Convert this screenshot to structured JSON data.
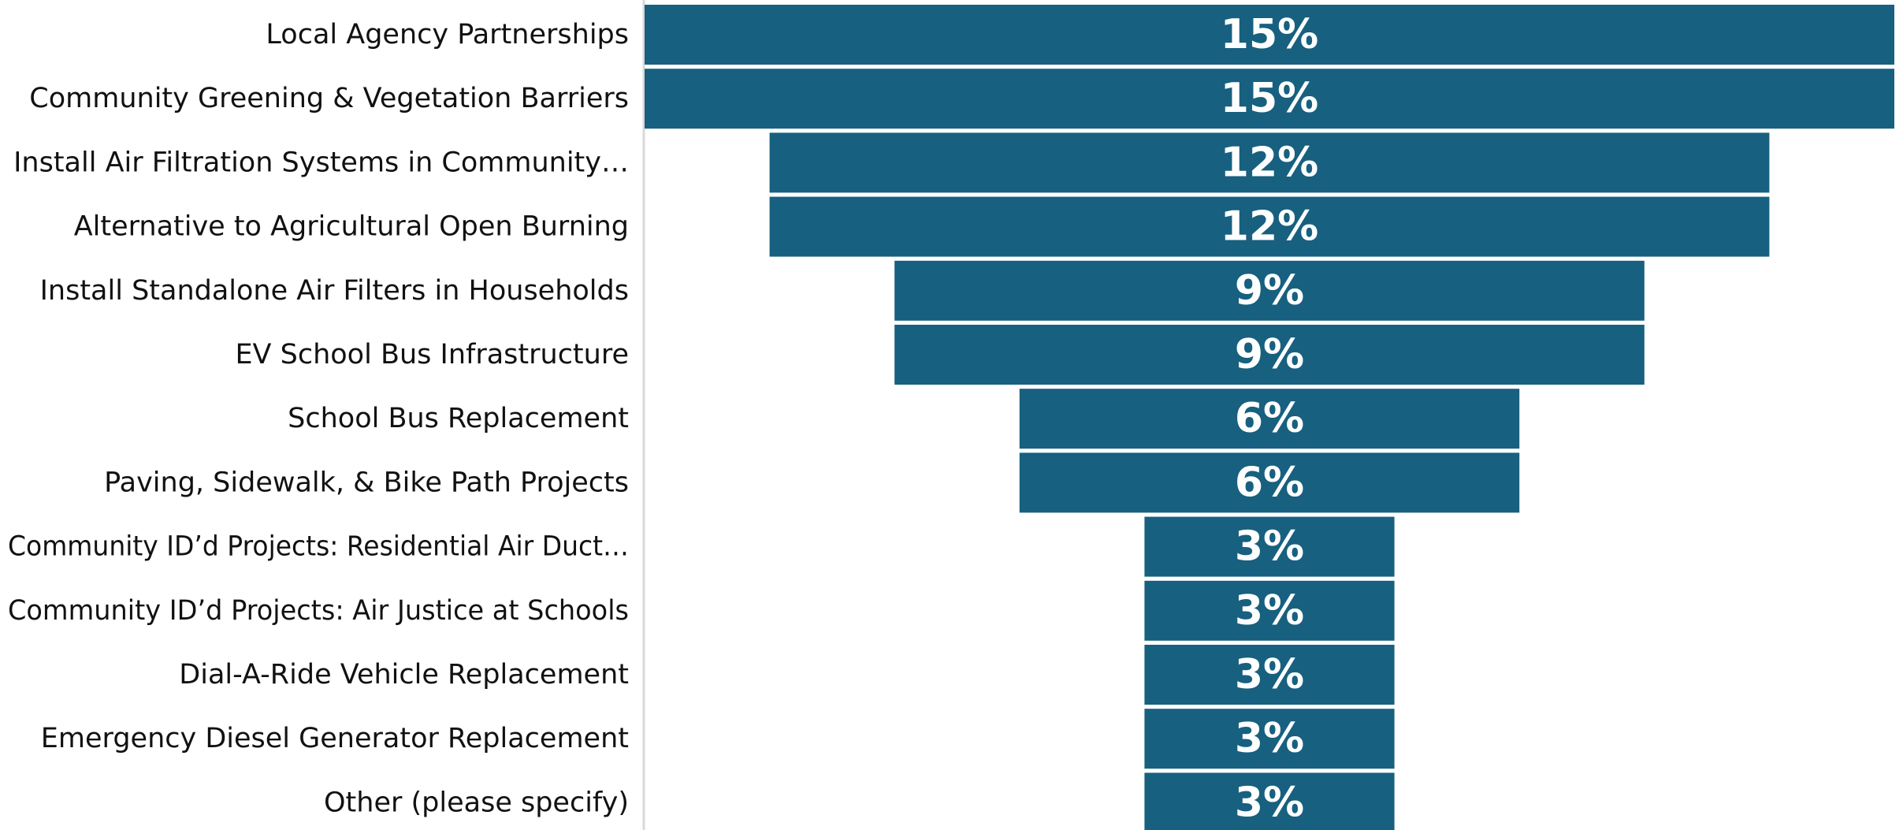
{
  "chart_data": {
    "type": "bar",
    "orientation": "horizontal-funnel",
    "title": "",
    "xlabel": "",
    "ylabel": "",
    "value_format": "percent",
    "bar_color": "#17607f",
    "value_label_color": "#ffffff",
    "xlim": [
      0,
      15
    ],
    "categories": [
      "Local Agency Partnerships",
      "Community Greening & Vegetation Barriers",
      "Install Air Filtration Systems in Community…",
      "Alternative to Agricultural Open Burning",
      "Install Standalone Air Filters in Households",
      "EV School Bus Infrastructure",
      "School Bus Replacement",
      "Paving, Sidewalk, & Bike Path Projects",
      "Community ID’d Projects: Residential Air Duct…",
      "Community ID’d Projects: Air Justice at Schools",
      "Dial-A-Ride Vehicle Replacement",
      "Emergency Diesel Generator Replacement",
      "Other (please specify)"
    ],
    "values": [
      15,
      15,
      12,
      12,
      9,
      9,
      6,
      6,
      3,
      3,
      3,
      3,
      3
    ],
    "value_labels": [
      "15%",
      "15%",
      "12%",
      "12%",
      "9%",
      "9%",
      "6%",
      "6%",
      "3%",
      "3%",
      "3%",
      "3%",
      "3%"
    ]
  }
}
